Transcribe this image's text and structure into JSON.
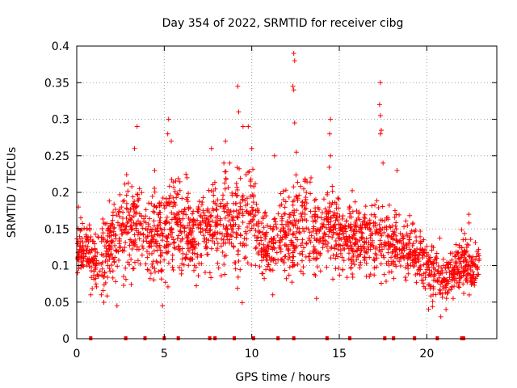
{
  "chart_data": {
    "type": "scatter",
    "title": "Day 354 of 2022, SRMTID for receiver cibg",
    "xlabel": "GPS time / hours",
    "ylabel": "SRMTID / TECUs",
    "xlim": [
      0,
      24
    ],
    "ylim": [
      0,
      0.4
    ],
    "xticks": [
      0,
      5,
      10,
      15,
      20
    ],
    "yticks": [
      0,
      0.05,
      0.1,
      0.15,
      0.2,
      0.25,
      0.3,
      0.35,
      0.4
    ],
    "ytick_labels": [
      "0",
      "0.05",
      "0.1",
      "0.15",
      "0.2",
      "0.25",
      "0.3",
      "0.35",
      "0.4"
    ],
    "grid": true,
    "marker": "+",
    "color": "#ff0000",
    "zero_markers_x": [
      0.8,
      2.8,
      3.9,
      5.0,
      5.8,
      7.6,
      7.9,
      9.0,
      10.1,
      11.5,
      12.4,
      14.3,
      15.6,
      17.6,
      18.1,
      19.3,
      20.6,
      22.0,
      22.1
    ],
    "envelope": {
      "x": [
        0.0,
        0.5,
        1.0,
        1.5,
        2.0,
        2.5,
        3.0,
        3.5,
        4.0,
        4.5,
        5.0,
        5.5,
        6.0,
        6.5,
        7.0,
        7.5,
        8.0,
        8.5,
        9.0,
        9.5,
        10.0,
        10.5,
        11.0,
        11.5,
        12.0,
        12.5,
        13.0,
        13.5,
        14.0,
        14.5,
        15.0,
        15.5,
        16.0,
        16.5,
        17.0,
        17.5,
        18.0,
        18.5,
        19.0,
        19.5,
        20.0,
        20.5,
        21.0,
        21.5,
        22.0,
        22.5,
        23.0
      ],
      "center": [
        0.12,
        0.13,
        0.1,
        0.11,
        0.13,
        0.14,
        0.15,
        0.16,
        0.13,
        0.15,
        0.14,
        0.17,
        0.15,
        0.14,
        0.14,
        0.15,
        0.15,
        0.17,
        0.16,
        0.16,
        0.18,
        0.14,
        0.12,
        0.13,
        0.14,
        0.15,
        0.16,
        0.14,
        0.15,
        0.16,
        0.14,
        0.14,
        0.14,
        0.14,
        0.13,
        0.14,
        0.13,
        0.13,
        0.12,
        0.11,
        0.1,
        0.09,
        0.08,
        0.09,
        0.1,
        0.1,
        0.1
      ],
      "spread": [
        0.03,
        0.04,
        0.04,
        0.05,
        0.05,
        0.06,
        0.06,
        0.07,
        0.05,
        0.06,
        0.06,
        0.07,
        0.06,
        0.05,
        0.05,
        0.06,
        0.06,
        0.07,
        0.07,
        0.07,
        0.06,
        0.05,
        0.04,
        0.05,
        0.05,
        0.07,
        0.06,
        0.05,
        0.05,
        0.06,
        0.05,
        0.05,
        0.05,
        0.05,
        0.05,
        0.05,
        0.05,
        0.05,
        0.04,
        0.04,
        0.04,
        0.04,
        0.03,
        0.03,
        0.04,
        0.04,
        0.03
      ]
    },
    "peaks": [
      {
        "x": 3.45,
        "y": 0.29
      },
      {
        "x": 3.3,
        "y": 0.26
      },
      {
        "x": 4.45,
        "y": 0.23
      },
      {
        "x": 5.25,
        "y": 0.3
      },
      {
        "x": 5.2,
        "y": 0.28
      },
      {
        "x": 5.4,
        "y": 0.27
      },
      {
        "x": 6.3,
        "y": 0.22
      },
      {
        "x": 7.7,
        "y": 0.26
      },
      {
        "x": 8.5,
        "y": 0.27
      },
      {
        "x": 9.2,
        "y": 0.345
      },
      {
        "x": 9.25,
        "y": 0.31
      },
      {
        "x": 9.5,
        "y": 0.29
      },
      {
        "x": 9.8,
        "y": 0.29
      },
      {
        "x": 10.0,
        "y": 0.26
      },
      {
        "x": 11.3,
        "y": 0.25
      },
      {
        "x": 12.4,
        "y": 0.39
      },
      {
        "x": 12.45,
        "y": 0.38
      },
      {
        "x": 12.35,
        "y": 0.345
      },
      {
        "x": 12.4,
        "y": 0.34
      },
      {
        "x": 12.45,
        "y": 0.295
      },
      {
        "x": 12.55,
        "y": 0.255
      },
      {
        "x": 14.5,
        "y": 0.3
      },
      {
        "x": 14.45,
        "y": 0.28
      },
      {
        "x": 14.5,
        "y": 0.25
      },
      {
        "x": 17.35,
        "y": 0.35
      },
      {
        "x": 17.3,
        "y": 0.32
      },
      {
        "x": 17.35,
        "y": 0.305
      },
      {
        "x": 17.4,
        "y": 0.285
      },
      {
        "x": 17.35,
        "y": 0.28
      },
      {
        "x": 17.5,
        "y": 0.24
      },
      {
        "x": 18.3,
        "y": 0.23
      },
      {
        "x": 22.4,
        "y": 0.17
      },
      {
        "x": 0.1,
        "y": 0.18
      },
      {
        "x": 20.1,
        "y": 0.04
      },
      {
        "x": 20.8,
        "y": 0.03
      },
      {
        "x": 21.1,
        "y": 0.04
      },
      {
        "x": 2.3,
        "y": 0.045
      },
      {
        "x": 4.9,
        "y": 0.045
      },
      {
        "x": 0.8,
        "y": 0.06
      },
      {
        "x": 13.7,
        "y": 0.055
      },
      {
        "x": 11.2,
        "y": 0.06
      }
    ],
    "point_count": 2200
  }
}
